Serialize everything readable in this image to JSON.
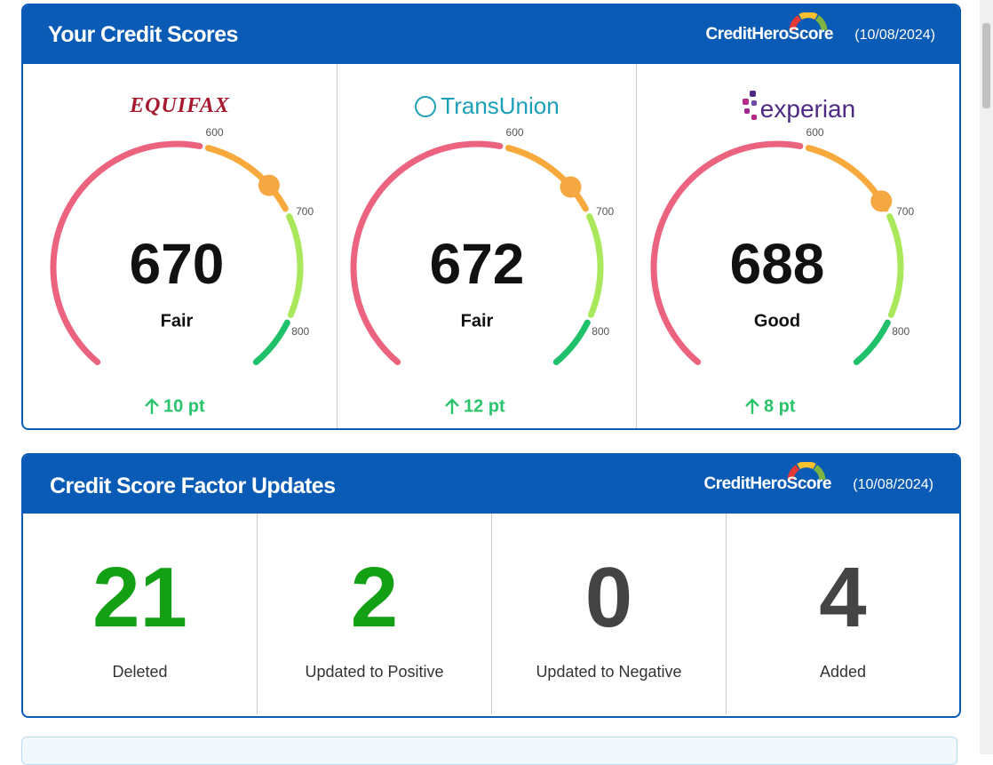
{
  "header": {
    "title": "Your Credit Scores",
    "brand": "CreditHeroScore",
    "date": "(10/08/2024)"
  },
  "gauge_scale": {
    "lim": [
      300,
      850
    ],
    "ticks": [
      600,
      700,
      800
    ],
    "colors": [
      "#ec6380",
      "#f7a93b",
      "#a8e85a",
      "#1fc26a"
    ],
    "marker_color": "#f5a742"
  },
  "bureaus": [
    {
      "name": "EQUIFAX",
      "score": 670,
      "rating": "Fair",
      "change": "10 pt"
    },
    {
      "name": "TransUnion",
      "score": 672,
      "rating": "Fair",
      "change": "12 pt"
    },
    {
      "name": "experian",
      "score": 688,
      "rating": "Good",
      "change": "8 pt"
    }
  ],
  "factors": {
    "title": "Credit Score Factor Updates",
    "brand": "CreditHeroScore",
    "date": "(10/08/2024)",
    "items": [
      {
        "count": 21,
        "label": "Deleted",
        "color": "#14a014"
      },
      {
        "count": 2,
        "label": "Updated to Positive",
        "color": "#14a014"
      },
      {
        "count": 0,
        "label": "Updated to Negative",
        "color": "#444444"
      },
      {
        "count": 4,
        "label": "Added",
        "color": "#444444"
      }
    ]
  }
}
